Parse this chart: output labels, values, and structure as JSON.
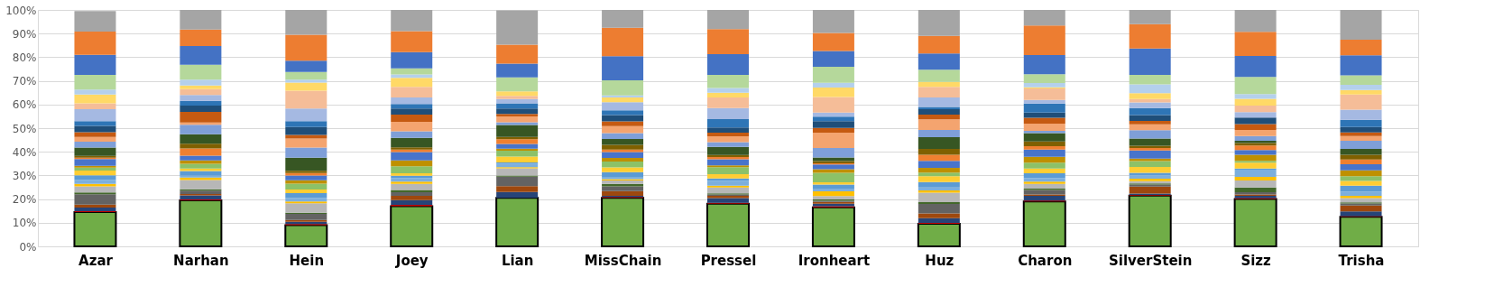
{
  "chart_data": {
    "type": "bar",
    "stacked": true,
    "categories": [
      "Azar",
      "Narhan",
      "Hein",
      "Joey",
      "Lian",
      "MissChain",
      "Pressel",
      "Ironheart",
      "Huz",
      "Charon",
      "SilverStein",
      "Sizz",
      "Trisha"
    ],
    "ylim": [
      0,
      100
    ],
    "yticks": [
      {
        "value": 0,
        "label": "0%"
      },
      {
        "value": 10,
        "label": "10%"
      },
      {
        "value": 20,
        "label": "20%"
      },
      {
        "value": 30,
        "label": "30%"
      },
      {
        "value": 40,
        "label": "40%"
      },
      {
        "value": 50,
        "label": "50%"
      },
      {
        "value": 60,
        "label": "60%"
      },
      {
        "value": 70,
        "label": "70%"
      },
      {
        "value": 80,
        "label": "80%"
      },
      {
        "value": 90,
        "label": "90%"
      },
      {
        "value": 100,
        "label": "100%"
      }
    ],
    "grid": "y",
    "legend": false,
    "series": [
      {
        "color": "#70ad47",
        "values": [
          14.5,
          19.5,
          9,
          17,
          20.5,
          20.5,
          18,
          16.5,
          9.5,
          19,
          21.5,
          20,
          12.5
        ]
      },
      {
        "color": "#c00000",
        "values": [
          0.4,
          0.3,
          0.4,
          0.6,
          null,
          0.4,
          0.4,
          0.5,
          0.4,
          0.4,
          0.3,
          0.4,
          0.3
        ]
      },
      {
        "color": "#264478",
        "values": [
          1.5,
          1.8,
          1,
          2,
          2.5,
          0.5,
          2,
          1,
          2,
          2,
          0.5,
          1,
          2
        ]
      },
      {
        "color": "#9e480e",
        "values": [
          1.3,
          0.5,
          0.8,
          1.8,
          2.5,
          2,
          1,
          0.8,
          2,
          0.5,
          3,
          0.5,
          2.5
        ]
      },
      {
        "color": "#636363",
        "values": [
          4.3,
          1.5,
          2.5,
          1.5,
          4,
          2,
          0.5,
          0.5,
          4,
          2,
          0.8,
          1,
          0.8
        ]
      },
      {
        "color": "#43682b",
        "values": [
          0.8,
          0.5,
          0.5,
          1,
          0.5,
          1,
          0.5,
          0.5,
          0.8,
          0.5,
          0.5,
          2,
          0.5
        ]
      },
      {
        "color": "#b7b7b7",
        "values": [
          2.6,
          4,
          4,
          2.5,
          3,
          1.5,
          2.5,
          1.5,
          4,
          2,
          1,
          3,
          1.8
        ]
      },
      {
        "color": "#ffc000",
        "values": [
          1,
          1,
          0.8,
          1,
          0.5,
          0.5,
          0.8,
          2,
          1,
          1,
          1,
          1.5,
          1
        ]
      },
      {
        "color": "#7cafdd",
        "values": [
          1.7,
          0.8,
          1.5,
          1.5,
          1.5,
          1,
          2,
          0.8,
          1.5,
          1.5,
          1.5,
          3,
          1.8
        ]
      },
      {
        "color": "#5b9bd5",
        "values": [
          2,
          2,
          2,
          1,
          0.5,
          2,
          1,
          2,
          2,
          2,
          1,
          0.5,
          2.5
        ]
      },
      {
        "color": "#ffcd33",
        "values": [
          2,
          1,
          1.5,
          1,
          2.5,
          2,
          1.8,
          1,
          2.5,
          2,
          2.5,
          2.5,
          2
        ]
      },
      {
        "color": "#8cc168",
        "values": [
          1.2,
          2,
          2.5,
          3,
          2.5,
          2.5,
          3,
          4,
          1.5,
          2.5,
          2.5,
          0.8,
          2
        ]
      },
      {
        "color": "#bf9000",
        "values": [
          0.8,
          1.5,
          1.5,
          2.5,
          0.8,
          1.5,
          0.8,
          1.5,
          2,
          2.5,
          1,
          2.5,
          2.5
        ]
      },
      {
        "color": "#4874cb",
        "values": [
          2.8,
          2,
          2,
          3.5,
          2,
          2.5,
          2.5,
          2,
          3,
          3,
          3.5,
          2,
          2.5
        ]
      },
      {
        "color": "#f08030",
        "values": [
          0.6,
          3,
          1,
          1,
          2,
          1,
          1,
          0.5,
          2.5,
          1.5,
          1,
          2,
          2
        ]
      },
      {
        "color": "#7f6000",
        "values": [
          0.8,
          2,
          1,
          1,
          1,
          2,
          0.8,
          1,
          2.5,
          2,
          1,
          1,
          2
        ]
      },
      {
        "color": "#375623",
        "values": [
          3.5,
          4,
          5.5,
          4,
          5,
          2.5,
          3.5,
          1.5,
          5,
          3.5,
          3,
          1,
          2.5
        ]
      },
      {
        "color": "#7f9fd8",
        "values": [
          2.5,
          4,
          4.3,
          2.8,
          1.2,
          2.5,
          2,
          4,
          3,
          1,
          3.5,
          2,
          3.5
        ]
      },
      {
        "color": "#f4a46f",
        "values": [
          2,
          1,
          3.8,
          4,
          2.5,
          3,
          2.5,
          6.5,
          4.5,
          3,
          2.5,
          2.5,
          2
        ]
      },
      {
        "color": "#c55a11",
        "values": [
          2,
          4.5,
          1.5,
          3,
          1,
          2,
          1.5,
          2,
          2,
          2.5,
          1.5,
          2.5,
          1.5
        ]
      },
      {
        "color": "#1f4e79",
        "values": [
          2.7,
          2.6,
          3.4,
          2.6,
          2.3,
          2.6,
          2.2,
          2.9,
          2.3,
          2.2,
          2.4,
          2.8,
          2.3
        ]
      },
      {
        "color": "#2e75b6",
        "values": [
          2,
          2,
          2.5,
          1.9,
          2.2,
          2,
          3.5,
          1.9,
          1,
          3.8,
          3,
          0,
          3
        ]
      },
      {
        "color": "#a5b9e2",
        "values": [
          5,
          2.5,
          5.3,
          2.8,
          1.8,
          3.5,
          4.7,
          1.7,
          4,
          1.5,
          2.4,
          2.3,
          4.3
        ]
      },
      {
        "color": "#f5bd98",
        "values": [
          2.5,
          2.5,
          7.5,
          4.5,
          1.3,
          0,
          4.5,
          6.6,
          4.5,
          4.9,
          1.4,
          2.7,
          6.4
        ]
      },
      {
        "color": "#ffd966",
        "values": [
          3.7,
          1.5,
          3.5,
          3.8,
          2,
          2,
          2,
          4,
          2.1,
          0.5,
          2.5,
          2.9,
          1.9
        ]
      },
      {
        "color": "#b4d0ec",
        "values": [
          2.1,
          2.5,
          1.2,
          1.4,
          0,
          0.8,
          2,
          2,
          0,
          1.8,
          3.7,
          2,
          2.2
        ]
      },
      {
        "color": "#b5d89b",
        "values": [
          6.2,
          6.3,
          3.3,
          2.6,
          5.9,
          6.4,
          5.5,
          6.8,
          5.1,
          3.7,
          4,
          7.3,
          4
        ]
      },
      {
        "color": "#4472c4",
        "values": [
          8.5,
          7.9,
          4.7,
          6.9,
          5.8,
          10.2,
          8.8,
          6.6,
          6.9,
          8.1,
          11.2,
          8.8,
          8.5
        ]
      },
      {
        "color": "#ed7d31",
        "values": [
          9.8,
          7,
          11,
          8.8,
          8,
          12.1,
          10.6,
          7.7,
          7.4,
          12.5,
          10.3,
          10.2,
          6.6
        ]
      },
      {
        "color": "#a5a5a5",
        "values": [
          8.7,
          8.3,
          10.5,
          9,
          14.5,
          7.5,
          8.1,
          9.7,
          11,
          6.6,
          6,
          9.3,
          12.6
        ]
      }
    ]
  }
}
